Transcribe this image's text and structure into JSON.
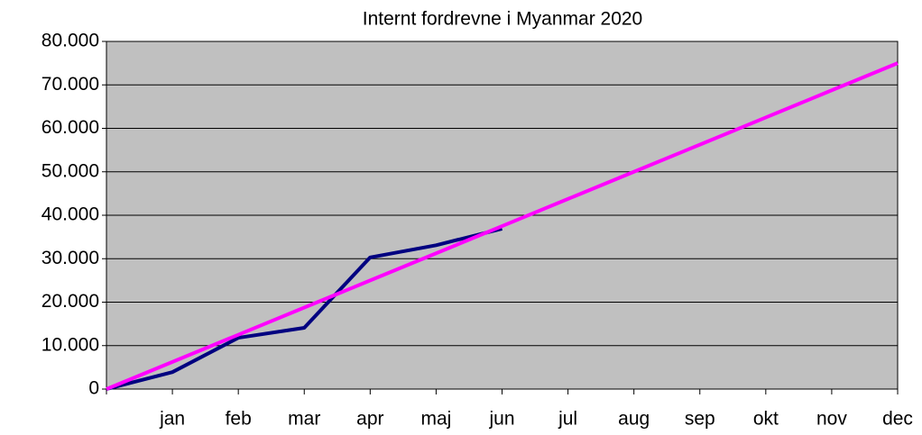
{
  "chart_data": {
    "type": "line",
    "title": "Internt fordrevne i Myanmar 2020",
    "categories": [
      null,
      "jan",
      "feb",
      "mar",
      "apr",
      "maj",
      "jun",
      "jul",
      "aug",
      "sep",
      "okt",
      "nov",
      "dec"
    ],
    "series": [
      {
        "color": "#000080",
        "values": [
          0,
          3900,
          11800,
          14100,
          30300,
          33100,
          36900,
          null,
          null,
          null,
          null,
          null,
          null
        ]
      },
      {
        "color": "#ff00ff",
        "values": [
          0,
          6250,
          12500,
          18750,
          25000,
          31250,
          37500,
          43750,
          50000,
          56250,
          62500,
          68750,
          75000
        ]
      }
    ],
    "ylim": [
      0,
      80000
    ],
    "yticks": [
      0,
      {
        "value": 10000,
        "label": "10.000"
      },
      {
        "value": 20000,
        "label": "20.000"
      },
      {
        "value": 30000,
        "label": "30.000"
      },
      {
        "value": 40000,
        "label": "40.000"
      },
      {
        "value": 50000,
        "label": "50.000"
      },
      {
        "value": 60000,
        "label": "60.000"
      },
      {
        "value": 70000,
        "label": "70.000"
      },
      {
        "value": 80000,
        "label": "80.000"
      }
    ],
    "grid": true,
    "background": "#c0c0c0"
  }
}
